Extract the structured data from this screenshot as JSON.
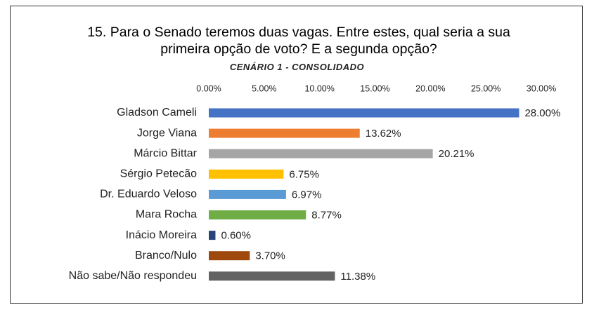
{
  "chart_data": {
    "type": "hbar",
    "title": "15. Para o Senado teremos duas vagas. Entre estes, qual seria a sua primeira opção de voto? E a segunda opção?",
    "subtitle": "CENÁRIO 1 - CONSOLIDADO",
    "categories": [
      "Gladson Cameli",
      "Jorge Viana",
      "Márcio Bittar",
      "Sérgio Petecão",
      "Dr. Eduardo Veloso",
      "Mara Rocha",
      "Inácio Moreira",
      "Branco/Nulo",
      "Não sabe/Não respondeu"
    ],
    "values": [
      28.0,
      13.62,
      20.21,
      6.75,
      6.97,
      8.77,
      0.6,
      3.7,
      11.38
    ],
    "value_labels": [
      "28.00%",
      "13.62%",
      "20.21%",
      "6.75%",
      "6.97%",
      "8.77%",
      "0.60%",
      "3.70%",
      "11.38%"
    ],
    "colors": [
      "#4472c4",
      "#ed7d31",
      "#a5a5a5",
      "#ffc000",
      "#5b9bd5",
      "#70ad47",
      "#264478",
      "#9e480e",
      "#636363"
    ],
    "xlim": [
      0,
      30
    ],
    "xticks": [
      {
        "value": 0,
        "label": "0.00%"
      },
      {
        "value": 5,
        "label": "5.00%"
      },
      {
        "value": 10,
        "label": "10.00%"
      },
      {
        "value": 15,
        "label": "15.00%"
      },
      {
        "value": 20,
        "label": "20.00%"
      },
      {
        "value": 25,
        "label": "25.00%"
      },
      {
        "value": 30,
        "label": "30.00%"
      }
    ]
  }
}
